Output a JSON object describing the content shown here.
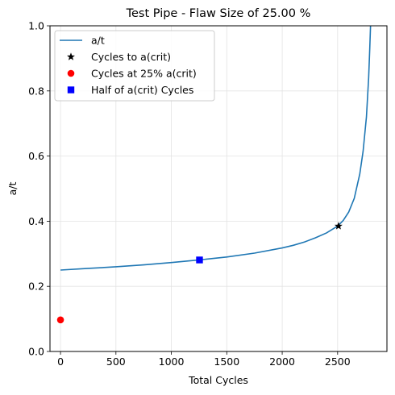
{
  "chart_data": {
    "type": "line",
    "title": "Test Pipe - Flaw Size of 25.00 %",
    "xlabel": "Total Cycles",
    "ylabel": "a/t",
    "xlim": [
      -95,
      2945
    ],
    "ylim": [
      0.0,
      1.0
    ],
    "grid": true,
    "legend_position": "top-left",
    "xticks": [
      0,
      500,
      1000,
      1500,
      2000,
      2500
    ],
    "yticks": [
      0.0,
      0.2,
      0.4,
      0.6,
      0.8,
      1.0
    ],
    "xtick_labels": [
      "0",
      "500",
      "1000",
      "1500",
      "2000",
      "2500"
    ],
    "ytick_labels": [
      "0.0",
      "0.2",
      "0.4",
      "0.6",
      "0.8",
      "1.0"
    ],
    "series": [
      {
        "name": "a/t",
        "kind": "line",
        "color": "#1f77b4",
        "x": [
          0,
          250,
          500,
          750,
          1000,
          1250,
          1500,
          1750,
          2000,
          2100,
          2200,
          2300,
          2400,
          2500,
          2550,
          2600,
          2650,
          2700,
          2730,
          2760,
          2780,
          2790,
          2797
        ],
        "y": [
          0.25,
          0.255,
          0.26,
          0.266,
          0.273,
          0.281,
          0.29,
          0.302,
          0.318,
          0.326,
          0.336,
          0.349,
          0.364,
          0.385,
          0.402,
          0.428,
          0.47,
          0.545,
          0.615,
          0.72,
          0.84,
          0.93,
          1.0
        ]
      },
      {
        "name": "Cycles to a(crit)",
        "kind": "marker",
        "marker": "star",
        "color": "#000000",
        "x": [
          2508
        ],
        "y": [
          0.385
        ]
      },
      {
        "name": "Cycles at 25% a(crit)",
        "kind": "marker",
        "marker": "circle",
        "color": "#ff0000",
        "x": [
          0
        ],
        "y": [
          0.097
        ]
      },
      {
        "name": "Half of a(crit) Cycles",
        "kind": "marker",
        "marker": "square",
        "color": "#0000ff",
        "x": [
          1254
        ],
        "y": [
          0.281
        ]
      }
    ]
  }
}
